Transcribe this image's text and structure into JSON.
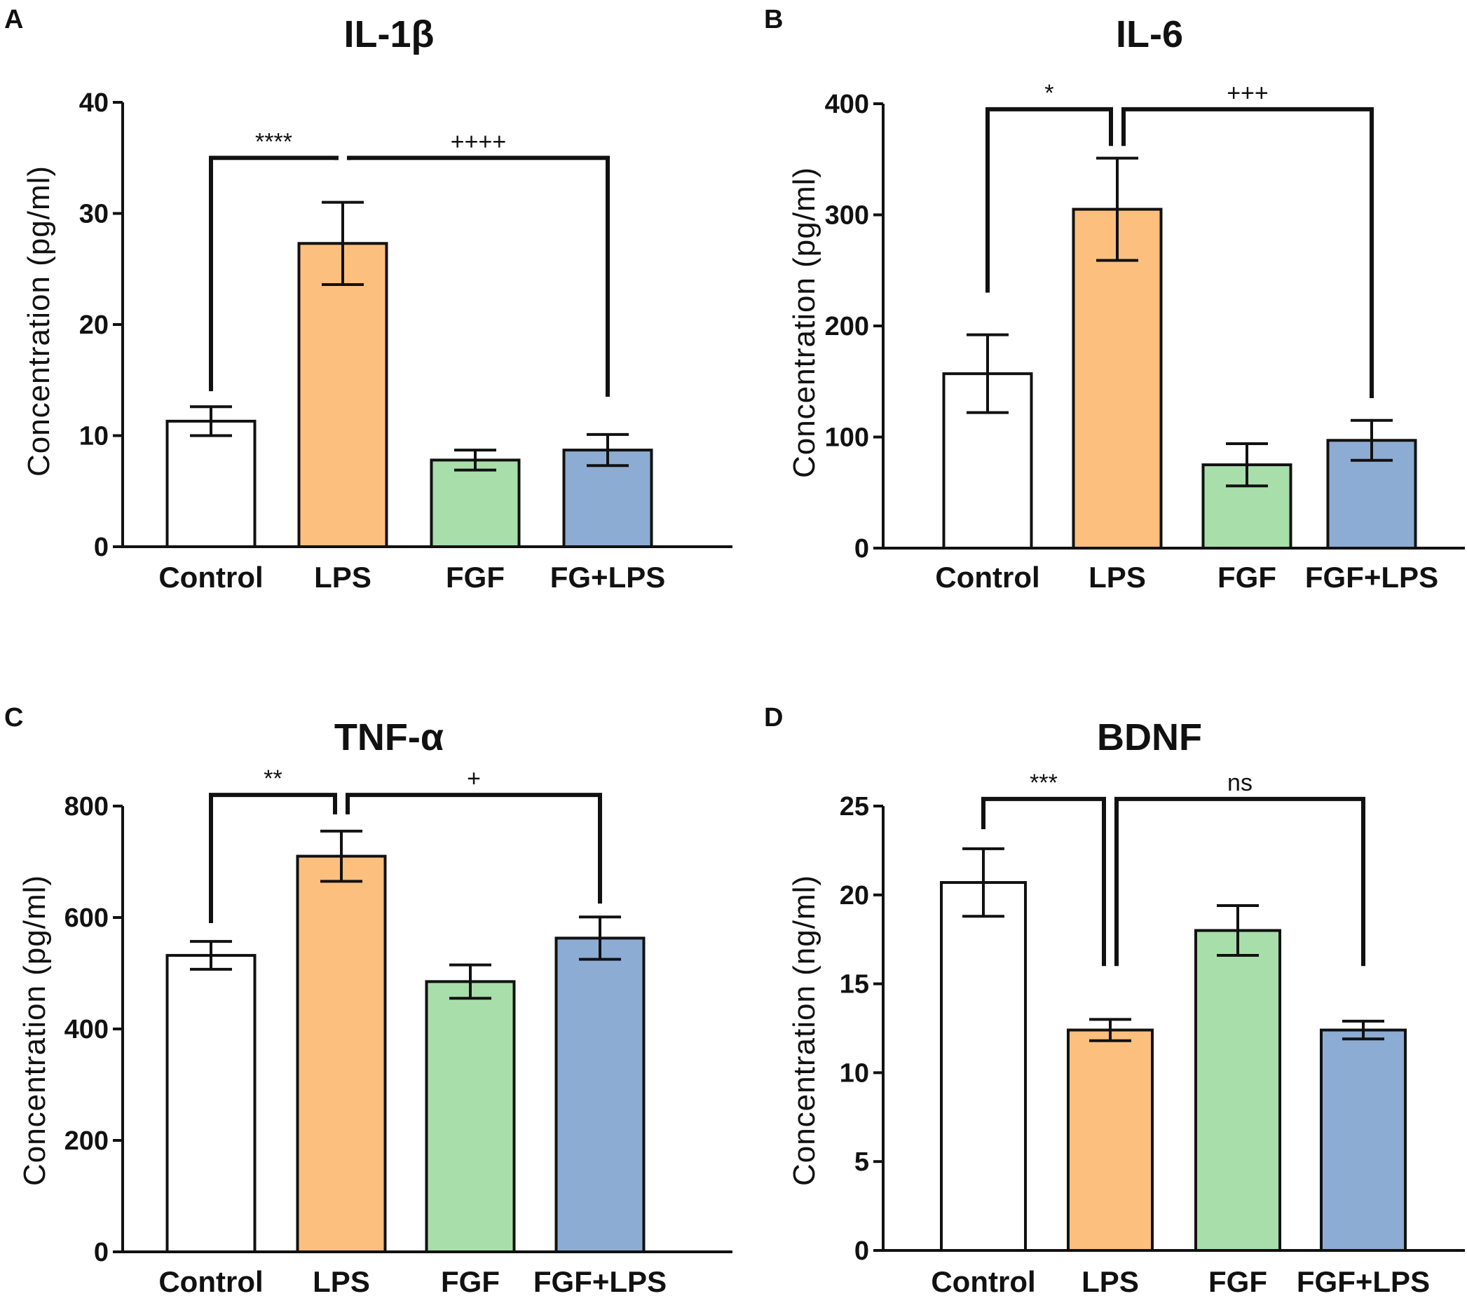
{
  "chart_data": [
    {
      "panel": "A",
      "type": "bar",
      "title": "IL-1β",
      "ylabel": "Concentration (pg/ml)",
      "xlabel": "",
      "categories": [
        "Control",
        "LPS",
        "FGF",
        "FG+LPS"
      ],
      "values": [
        11.3,
        27.3,
        7.8,
        8.7
      ],
      "errors": [
        1.3,
        3.7,
        0.9,
        1.4
      ],
      "colors": [
        "#ffffff",
        "#fdbf7e",
        "#a8deaa",
        "#8dacd3"
      ],
      "ylim": [
        0,
        40
      ],
      "yticks": [
        0,
        10,
        20,
        30,
        40
      ],
      "comparisons": [
        {
          "from": 0,
          "to": 1,
          "label": "****",
          "y": 35,
          "from_drop": 14,
          "to_drop": 34.8
        },
        {
          "from": 1,
          "to": 3,
          "label": "++++",
          "y": 35,
          "from_drop": 34.8,
          "to_drop": 13.5
        }
      ]
    },
    {
      "panel": "B",
      "type": "bar",
      "title": "IL-6",
      "ylabel": "Concentration (pg/ml)",
      "xlabel": "",
      "categories": [
        "Control",
        "LPS",
        "FGF",
        "FGF+LPS"
      ],
      "values": [
        157,
        305,
        75,
        97
      ],
      "errors": [
        35,
        46,
        19,
        18
      ],
      "colors": [
        "#ffffff",
        "#fdbf7e",
        "#a8deaa",
        "#8dacd3"
      ],
      "ylim": [
        0,
        400
      ],
      "yticks": [
        0,
        100,
        200,
        300,
        400
      ],
      "comparisons": [
        {
          "from": 0,
          "to": 1,
          "label": "*",
          "y": 395,
          "from_drop": 230,
          "to_drop": 362
        },
        {
          "from": 1,
          "to": 3,
          "label": "+++",
          "y": 395,
          "from_drop": 362,
          "to_drop": 135
        }
      ]
    },
    {
      "panel": "C",
      "type": "bar",
      "title": "TNF-α",
      "ylabel": "Concentration (pg/ml)",
      "xlabel": "",
      "categories": [
        "Control",
        "LPS",
        "FGF",
        "FGF+LPS"
      ],
      "values": [
        532,
        710,
        485,
        563
      ],
      "errors": [
        25,
        45,
        30,
        38
      ],
      "colors": [
        "#ffffff",
        "#fdbf7e",
        "#a8deaa",
        "#8dacd3"
      ],
      "ylim": [
        0,
        800
      ],
      "yticks": [
        0,
        200,
        400,
        600,
        800
      ],
      "comparisons": [
        {
          "from": 0,
          "to": 1,
          "label": "**",
          "y": 820,
          "from_drop": 590,
          "to_drop": 785
        },
        {
          "from": 1,
          "to": 3,
          "label": "+",
          "y": 820,
          "from_drop": 785,
          "to_drop": 625
        }
      ]
    },
    {
      "panel": "D",
      "type": "bar",
      "title": "BDNF",
      "ylabel": "Concentration (ng/ml)",
      "xlabel": "",
      "categories": [
        "Control",
        "LPS",
        "FGF",
        "FGF+LPS"
      ],
      "values": [
        20.7,
        12.4,
        18.0,
        12.4
      ],
      "errors": [
        1.9,
        0.6,
        1.4,
        0.5
      ],
      "colors": [
        "#ffffff",
        "#fdbf7e",
        "#a8deaa",
        "#8dacd3"
      ],
      "ylim": [
        0,
        25
      ],
      "yticks": [
        0,
        5,
        10,
        15,
        20,
        25
      ],
      "comparisons": [
        {
          "from": 0,
          "to": 1,
          "label": "***",
          "y": 25.4,
          "from_drop": 23.7,
          "to_drop": 16
        },
        {
          "from": 1,
          "to": 3,
          "label": "ns",
          "y": 25.4,
          "from_drop": 16,
          "to_drop": 16
        }
      ]
    }
  ]
}
